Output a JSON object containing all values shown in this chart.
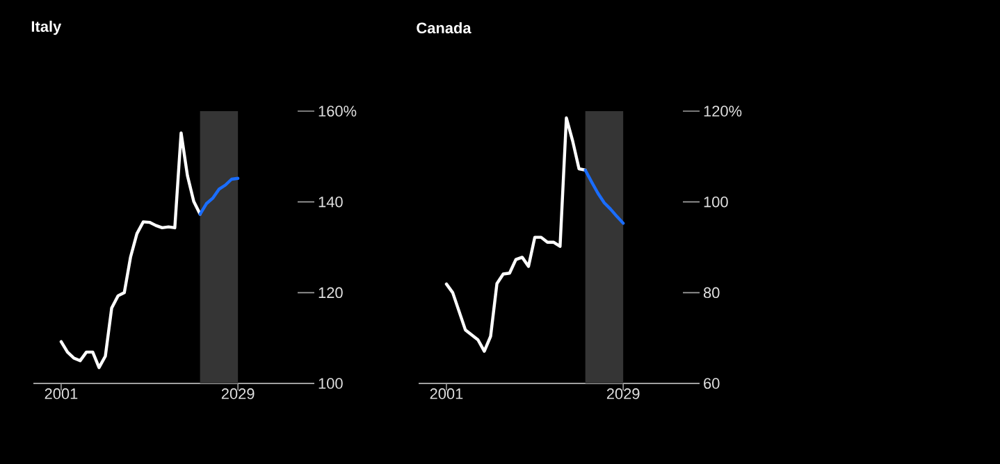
{
  "chart_data": [
    {
      "type": "line",
      "title": "Italy",
      "xlim": [
        1996.6,
        2041.1
      ],
      "ylim": [
        100,
        160
      ],
      "xticks": [
        2001,
        2029
      ],
      "yticks": [
        100,
        120,
        140,
        {
          "value": 160,
          "label": "160%"
        }
      ],
      "bands": [
        {
          "axis": "x",
          "from": 2023,
          "to": 2029,
          "color": "#353535"
        }
      ],
      "series": [
        {
          "color": "#ffffff",
          "x": [
            2001,
            2002,
            2003,
            2004,
            2005,
            2006,
            2007,
            2008,
            2009,
            2010,
            2011,
            2012,
            2013,
            2014,
            2015,
            2016,
            2017,
            2018,
            2019,
            2020,
            2021,
            2022,
            2023
          ],
          "values": [
            109.2,
            106.9,
            105.6,
            105.0,
            106.9,
            106.9,
            103.5,
            106.0,
            116.6,
            119.3,
            120.0,
            127.9,
            133.0,
            135.6,
            135.5,
            134.8,
            134.3,
            134.5,
            134.3,
            155.2,
            145.8,
            140.1,
            137.3
          ]
        },
        {
          "color": "#1a6dff",
          "x": [
            2023,
            2024,
            2025,
            2026,
            2027,
            2028,
            2029
          ],
          "values": [
            137.3,
            139.6,
            140.8,
            142.8,
            143.7,
            145.0,
            145.2
          ]
        }
      ]
    },
    {
      "type": "line",
      "title": "Canada",
      "xlim": [
        1996.6,
        2041.1
      ],
      "ylim": [
        60,
        120
      ],
      "xticks": [
        2001,
        2029
      ],
      "yticks": [
        60,
        80,
        100,
        {
          "value": 120,
          "label": "120%"
        }
      ],
      "bands": [
        {
          "axis": "x",
          "from": 2023,
          "to": 2029,
          "color": "#353535"
        }
      ],
      "series": [
        {
          "color": "#ffffff",
          "x": [
            2001,
            2002,
            2003,
            2004,
            2005,
            2006,
            2007,
            2008,
            2009,
            2010,
            2011,
            2012,
            2013,
            2014,
            2015,
            2016,
            2017,
            2018,
            2019,
            2020,
            2021,
            2022,
            2023
          ],
          "values": [
            81.9,
            80.0,
            75.9,
            71.8,
            70.7,
            69.6,
            67.1,
            70.4,
            82.0,
            84.1,
            84.3,
            87.3,
            87.8,
            85.8,
            92.2,
            92.2,
            91.1,
            91.1,
            90.2,
            118.5,
            113.4,
            107.3,
            107.0
          ]
        },
        {
          "color": "#1a6dff",
          "x": [
            2023,
            2024,
            2025,
            2026,
            2027,
            2028,
            2029
          ],
          "values": [
            107.0,
            104.4,
            101.9,
            99.8,
            98.4,
            96.8,
            95.3
          ]
        }
      ]
    }
  ]
}
